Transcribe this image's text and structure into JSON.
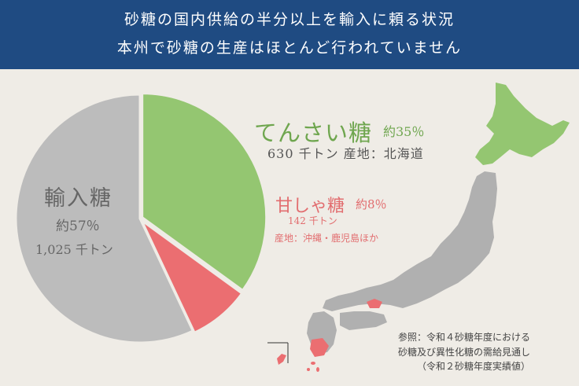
{
  "header": {
    "line1": "砂糖の国内供給の半分以上を輸入に頼る状況",
    "line2": "本州で砂糖の生産はほとんど行われていません"
  },
  "colors": {
    "header_bg": "#1f4b82",
    "beet": "#94c671",
    "cane": "#eb6e71",
    "import": "#bcbcbc",
    "map_gray": "#b0b0b0",
    "background": "#efece6"
  },
  "labels": {
    "beet": {
      "name": "てんさい糖",
      "pct": "約35％",
      "sub": "630 千トン  産地：北海道"
    },
    "cane": {
      "name": "甘しゃ糖",
      "pct": "約8％",
      "amt": "142 千トン",
      "region": "産地：沖縄・鹿児島ほか"
    },
    "import": {
      "name": "輸入糖",
      "pct": "約57％",
      "amt": "1,025 千トン"
    }
  },
  "source": {
    "line1": "参照：令和４砂糖年度における",
    "line2": "砂糖及び異性化糖の需給見通し",
    "line3": "（令和２砂糖年度実績値）"
  },
  "map_icon": "japan-map-icon",
  "chart_data": {
    "type": "pie",
    "categories": [
      "てんさい糖",
      "甘しゃ糖",
      "輸入糖"
    ],
    "values": [
      35,
      8,
      57
    ],
    "amounts_thousand_tons": [
      630,
      142,
      1025
    ]
  }
}
